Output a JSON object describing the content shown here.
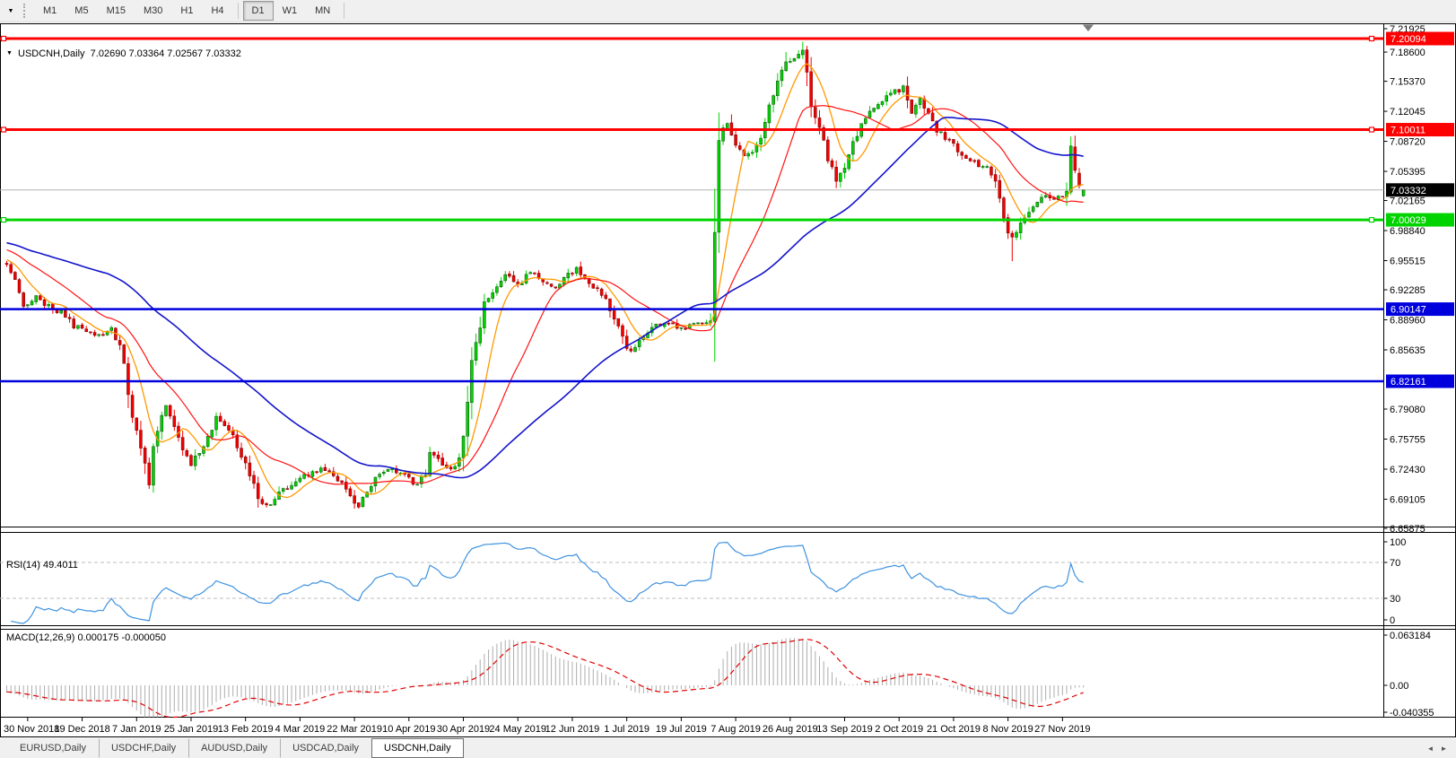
{
  "toolbar": {
    "dropdown_icon": "▼",
    "timeframes": [
      {
        "label": "M1",
        "active": false
      },
      {
        "label": "M5",
        "active": false
      },
      {
        "label": "M15",
        "active": false
      },
      {
        "label": "M30",
        "active": false
      },
      {
        "label": "H1",
        "active": false
      },
      {
        "label": "H4",
        "active": false
      },
      {
        "label": "D1",
        "active": true
      },
      {
        "label": "W1",
        "active": false
      },
      {
        "label": "MN",
        "active": false
      }
    ]
  },
  "chart": {
    "title_text": "USDCNH,Daily  7.02690 7.03364 7.02567 7.03332",
    "title": {
      "symbol": "USDCNH,Daily",
      "open": "7.02690",
      "high": "7.03364",
      "low": "7.02567",
      "close": "7.03332"
    },
    "price_axis": {
      "ticks": [
        "7.21925",
        "7.18600",
        "7.15370",
        "7.12045",
        "7.08720",
        "7.05395",
        "7.02165",
        "6.98840",
        "6.95515",
        "6.92285",
        "6.88960",
        "6.85635",
        "6.79080",
        "6.75755",
        "6.72430",
        "6.69105",
        "6.65875"
      ],
      "badges": [
        {
          "value": "7.20094",
          "bg": "#ff0000",
          "fg": "#ffffff"
        },
        {
          "value": "7.10011",
          "bg": "#ff0000",
          "fg": "#ffffff"
        },
        {
          "value": "7.03332",
          "bg": "#000000",
          "fg": "#ffffff"
        },
        {
          "value": "7.00029",
          "bg": "#00d400",
          "fg": "#ffffff"
        },
        {
          "value": "6.90147",
          "bg": "#0000dd",
          "fg": "#ffffff"
        },
        {
          "value": "6.82161",
          "bg": "#0000dd",
          "fg": "#ffffff"
        }
      ]
    },
    "rsi_axis": [
      "100",
      "70",
      "30",
      "0"
    ],
    "macd_axis": [
      "0.063184",
      "0.00",
      "-0.040355"
    ]
  },
  "indicators": {
    "rsi_label": "RSI(14) 49.4011",
    "macd_label": "MACD(12,26,9) 0.000175 -0.000050"
  },
  "tabs": {
    "items": [
      {
        "label": "EURUSD,Daily",
        "active": false
      },
      {
        "label": "USDCHF,Daily",
        "active": false
      },
      {
        "label": "AUDUSD,Daily",
        "active": false
      },
      {
        "label": "USDCAD,Daily",
        "active": false
      },
      {
        "label": "USDCNH,Daily",
        "active": true
      }
    ],
    "scroll_left_icon": "◄",
    "scroll_right_icon": "►"
  },
  "chart_data": {
    "type": "candlestick",
    "symbol": "USDCNH",
    "timeframe": "Daily",
    "last_ohlc": {
      "open": 7.0269,
      "high": 7.03364,
      "low": 7.02567,
      "close": 7.03332
    },
    "num_candles": 258,
    "label_every": 13,
    "first_label_index": 5,
    "x_labels": [
      "30 Nov 2018",
      "19 Dec 2018",
      "7 Jan 2019",
      "25 Jan 2019",
      "13 Feb 2019",
      "4 Mar 2019",
      "22 Mar 2019",
      "10 Apr 2019",
      "30 Apr 2019",
      "24 May 2019",
      "12 Jun 2019",
      "1 Jul 2019",
      "19 Jul 2019",
      "7 Aug 2019",
      "26 Aug 2019",
      "13 Sep 2019",
      "2 Oct 2019",
      "21 Oct 2019",
      "8 Nov 2019",
      "27 Nov 2019"
    ],
    "ylim": [
      6.64,
      7.23
    ],
    "price_anchors": [
      [
        0,
        6.952
      ],
      [
        2,
        6.935
      ],
      [
        4,
        6.903
      ],
      [
        7,
        6.915
      ],
      [
        10,
        6.905
      ],
      [
        13,
        6.897
      ],
      [
        16,
        6.883
      ],
      [
        19,
        6.878
      ],
      [
        22,
        6.872
      ],
      [
        25,
        6.88
      ],
      [
        27,
        6.862
      ],
      [
        28,
        6.838
      ],
      [
        29,
        6.805
      ],
      [
        31,
        6.766
      ],
      [
        33,
        6.73
      ],
      [
        34,
        6.705
      ],
      [
        35,
        6.755
      ],
      [
        37,
        6.78
      ],
      [
        38,
        6.793
      ],
      [
        40,
        6.77
      ],
      [
        42,
        6.746
      ],
      [
        44,
        6.73
      ],
      [
        46,
        6.742
      ],
      [
        48,
        6.757
      ],
      [
        50,
        6.786
      ],
      [
        52,
        6.771
      ],
      [
        54,
        6.76
      ],
      [
        56,
        6.738
      ],
      [
        58,
        6.718
      ],
      [
        60,
        6.692
      ],
      [
        62,
        6.684
      ],
      [
        64,
        6.692
      ],
      [
        66,
        6.701
      ],
      [
        68,
        6.709
      ],
      [
        70,
        6.714
      ],
      [
        72,
        6.719
      ],
      [
        74,
        6.722
      ],
      [
        76,
        6.724
      ],
      [
        78,
        6.717
      ],
      [
        80,
        6.709
      ],
      [
        82,
        6.696
      ],
      [
        84,
        6.684
      ],
      [
        86,
        6.699
      ],
      [
        88,
        6.714
      ],
      [
        90,
        6.721
      ],
      [
        92,
        6.725
      ],
      [
        94,
        6.719
      ],
      [
        96,
        6.714
      ],
      [
        98,
        6.705
      ],
      [
        100,
        6.722
      ],
      [
        101,
        6.744
      ],
      [
        102,
        6.739
      ],
      [
        104,
        6.729
      ],
      [
        106,
        6.725
      ],
      [
        108,
        6.735
      ],
      [
        110,
        6.792
      ],
      [
        111,
        6.845
      ],
      [
        113,
        6.882
      ],
      [
        114,
        6.907
      ],
      [
        116,
        6.923
      ],
      [
        119,
        6.938
      ],
      [
        122,
        6.928
      ],
      [
        125,
        6.943
      ],
      [
        128,
        6.933
      ],
      [
        130,
        6.926
      ],
      [
        132,
        6.928
      ],
      [
        134,
        6.939
      ],
      [
        136,
        6.949
      ],
      [
        138,
        6.936
      ],
      [
        140,
        6.926
      ],
      [
        142,
        6.918
      ],
      [
        144,
        6.901
      ],
      [
        146,
        6.881
      ],
      [
        148,
        6.855
      ],
      [
        150,
        6.861
      ],
      [
        152,
        6.869
      ],
      [
        154,
        6.881
      ],
      [
        156,
        6.884
      ],
      [
        158,
        6.886
      ],
      [
        160,
        6.883
      ],
      [
        162,
        6.881
      ],
      [
        164,
        6.884
      ],
      [
        166,
        6.886
      ],
      [
        168,
        6.892
      ],
      [
        169,
        6.98
      ],
      [
        170,
        7.094
      ],
      [
        172,
        7.108
      ],
      [
        174,
        7.084
      ],
      [
        176,
        7.069
      ],
      [
        178,
        7.076
      ],
      [
        180,
        7.091
      ],
      [
        182,
        7.126
      ],
      [
        184,
        7.157
      ],
      [
        186,
        7.172
      ],
      [
        188,
        7.182
      ],
      [
        190,
        7.188
      ],
      [
        191,
        7.16
      ],
      [
        192,
        7.126
      ],
      [
        194,
        7.105
      ],
      [
        196,
        7.069
      ],
      [
        198,
        7.043
      ],
      [
        200,
        7.061
      ],
      [
        202,
        7.086
      ],
      [
        204,
        7.105
      ],
      [
        206,
        7.12
      ],
      [
        208,
        7.129
      ],
      [
        210,
        7.136
      ],
      [
        212,
        7.142
      ],
      [
        214,
        7.147
      ],
      [
        216,
        7.121
      ],
      [
        218,
        7.137
      ],
      [
        220,
        7.116
      ],
      [
        222,
        7.1
      ],
      [
        224,
        7.09
      ],
      [
        226,
        7.083
      ],
      [
        228,
        7.069
      ],
      [
        230,
        7.065
      ],
      [
        232,
        7.061
      ],
      [
        234,
        7.058
      ],
      [
        236,
        7.041
      ],
      [
        238,
        7.006
      ],
      [
        239,
        6.989
      ],
      [
        240,
        6.979
      ],
      [
        241,
        6.99
      ],
      [
        243,
        7.006
      ],
      [
        245,
        7.016
      ],
      [
        247,
        7.027
      ],
      [
        249,
        7.022
      ],
      [
        251,
        7.027
      ],
      [
        253,
        7.031
      ],
      [
        254,
        7.08
      ],
      [
        255,
        7.058
      ],
      [
        256,
        7.04
      ],
      [
        257,
        7.0333
      ]
    ],
    "candle_overrides": {
      "186": {
        "h": 7.186
      },
      "190": {
        "h": 7.1975
      },
      "240": {
        "l": 6.9545
      },
      "254": {
        "o": 7.031,
        "c": 7.082,
        "h": 7.0925,
        "l": 7.028
      },
      "255": {
        "o": 7.081,
        "c": 7.055
      },
      "256": {
        "o": 7.052,
        "c": 7.038
      },
      "257": {
        "o": 7.0269,
        "h": 7.03364,
        "l": 7.02567,
        "c": 7.03332
      }
    },
    "horizontal_levels": [
      {
        "price": 7.20094,
        "color": "#ff0000",
        "width": 3,
        "handles": true
      },
      {
        "price": 7.10011,
        "color": "#ff0000",
        "width": 3,
        "handles": true
      },
      {
        "price": 7.00029,
        "color": "#00d400",
        "width": 3,
        "handles": true
      },
      {
        "price": 6.90147,
        "color": "#0000dd",
        "width": 2.5,
        "handles": false
      },
      {
        "price": 6.82161,
        "color": "#0000dd",
        "width": 2.5,
        "handles": false
      }
    ],
    "current_price": {
      "value": 7.03332,
      "color": "#b6b6b6"
    },
    "moving_averages": [
      {
        "period": 8,
        "color": "#ff9900",
        "width": 1.3
      },
      {
        "period": 21,
        "color": "#ff1212",
        "width": 1.2
      },
      {
        "period": 55,
        "color": "#1414cc",
        "width": 1.6
      }
    ],
    "bull_color": "#00d400",
    "bear_color": "#f20000",
    "rsi": {
      "period": 14,
      "current": 49.4011,
      "range": [
        0,
        100
      ],
      "guides": [
        70,
        30
      ],
      "color": "#3e92e0"
    },
    "macd": {
      "fast": 12,
      "slow": 26,
      "signal_period": 9,
      "current": 0.000175,
      "signal_current": -5e-05,
      "scale_max": 0.063184,
      "scale_min": -0.040355,
      "hist_color": "#adadad",
      "signal_color": "#e00000"
    },
    "warmup": {
      "bars": 30,
      "start_price": 6.998
    },
    "seed": 12
  }
}
